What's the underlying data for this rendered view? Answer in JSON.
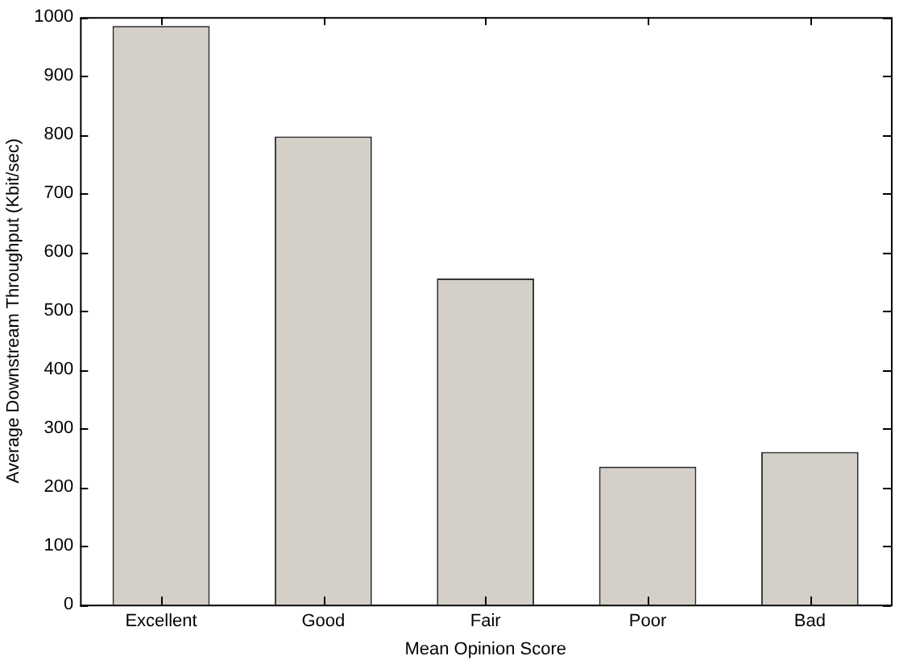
{
  "chart_data": {
    "type": "bar",
    "xlabel": "Mean Opinion Score",
    "ylabel": "Average Downstream Throughput (Kbit/sec)",
    "categories": [
      "Excellent",
      "Good",
      "Fair",
      "Poor",
      "Bad"
    ],
    "values": [
      985,
      797,
      555,
      235,
      260
    ],
    "color": "#d4d0c8",
    "ylim": [
      0,
      1000
    ],
    "yticks": [
      0,
      100,
      200,
      300,
      400,
      500,
      600,
      700,
      800,
      900,
      1000
    ],
    "grid": false,
    "legend": false
  }
}
